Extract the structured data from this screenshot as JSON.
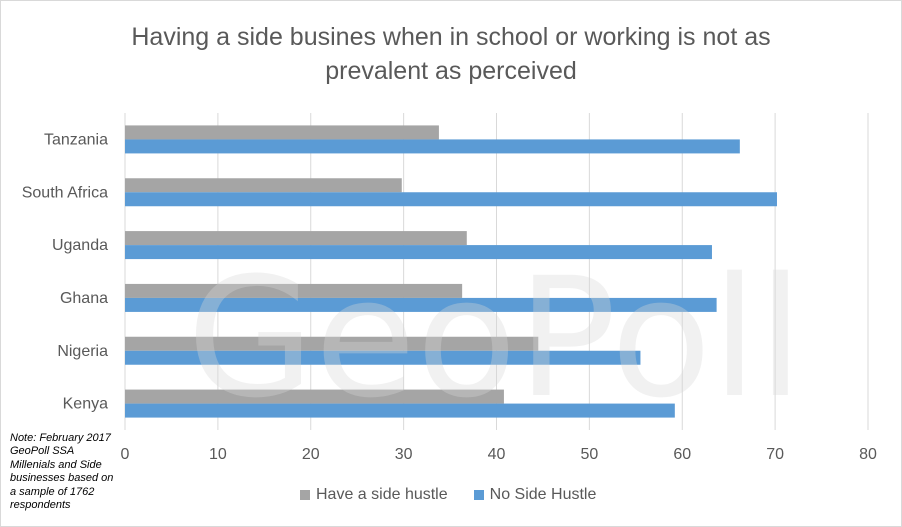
{
  "chart_data": {
    "type": "bar",
    "orientation": "horizontal",
    "title": "Having a side busines when in school or working is not as\nprevalent as perceived",
    "categories": [
      "Tanzania",
      "South Africa",
      "Uganda",
      "Ghana",
      "Nigeria",
      "Kenya"
    ],
    "series": [
      {
        "name": "Have a side hustle",
        "color": "#a5a5a5",
        "values": [
          33.8,
          29.8,
          36.8,
          36.3,
          44.5,
          40.8
        ]
      },
      {
        "name": "No Side Hustle",
        "color": "#5b9bd5",
        "values": [
          66.2,
          70.2,
          63.2,
          63.7,
          55.5,
          59.2
        ]
      }
    ],
    "xlim": [
      0,
      80
    ],
    "xticks": [
      "0",
      "10",
      "20",
      "30",
      "40",
      "50",
      "60",
      "70",
      "80"
    ],
    "grid": "vertical",
    "legend_position": "bottom"
  },
  "note": "Note: February 2017 GeoPoll SSA Millenials and Side businesses based on a sample of 1762 respondents",
  "watermark": "GeoPoll"
}
